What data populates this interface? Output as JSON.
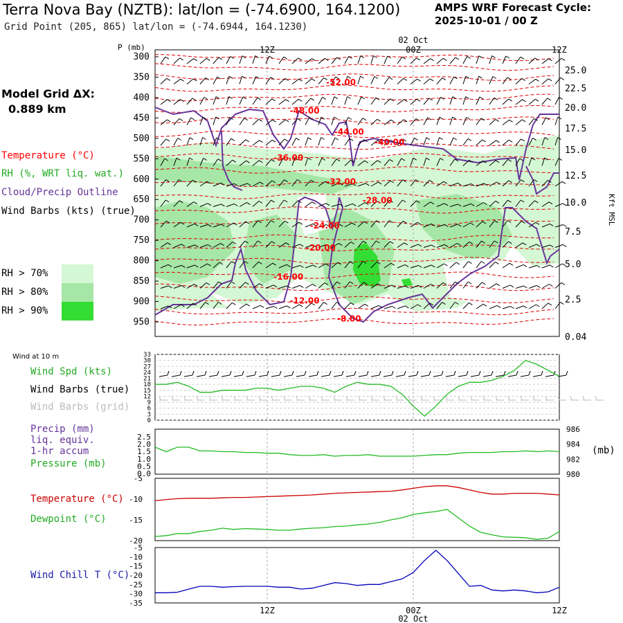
{
  "header": {
    "title": "Terra Nova Bay (NZTB):  lat/lon = (-74.6900, 164.1200)",
    "subtitle": "Grid Point (205, 865) lat/lon = (-74.6944, 164.1230)",
    "cycle_line1": "AMPS WRF Forecast Cycle:",
    "cycle_line2": "2025-10-01 / 00  Z"
  },
  "model_grid": {
    "label": "Model Grid ΔX:",
    "value": "0.889 km"
  },
  "legend": {
    "temperature": "Temperature (°C)",
    "rh": "RH (%, WRT liq. wat.)",
    "cloud": "Cloud/Precip Outline",
    "wind": "Wind Barbs (kts) (true)",
    "rh70": "RH > 70%",
    "rh80": "RH > 80%",
    "rh90": "RH > 90%",
    "wind10m": "Wind at 10 m",
    "wind_spd": "Wind Spd (kts)",
    "barbs_true": "Wind Barbs (true)",
    "barbs_grid": "Wind Barbs (grid)",
    "precip1": "Precip (mm)",
    "precip2": "liq. equiv.",
    "precip3": "1-hr accum",
    "pressure": "Pressure (mb)",
    "mb": "(mb)",
    "temp": "Temperature (°C)",
    "dewpoint": "Dewpoint (°C)",
    "windchill": "Wind Chill T (°C)"
  },
  "colors": {
    "temperature": "#ff0000",
    "contour": "#dd0000",
    "rh_green": "#22bb22",
    "cloud": "#663399",
    "wind": "#000000",
    "barb_grid": "#bbbbbb",
    "dewpoint": "#22bb22",
    "windchill": "#0000bb",
    "rh70": "#d4f7d4",
    "rh80": "#a6e6a6",
    "rh90": "#33dd33"
  },
  "chart_data": [
    {
      "type": "cross-section",
      "title": "Temperature / RH / Cloud / Wind time-height",
      "y_label": "P (mb)",
      "y_right_label": "Kft MSL",
      "p_ticks": [
        "300",
        "350",
        "400",
        "450",
        "500",
        "550",
        "600",
        "650",
        "700",
        "750",
        "800",
        "850",
        "900",
        "950"
      ],
      "kft_ticks": [
        "25.0",
        "22.5",
        "20.0",
        "17.5",
        "15.0",
        "12.5",
        "10.0",
        "7.5",
        "5.0",
        "2.5",
        "0.04"
      ],
      "time_ticks": [
        "12Z",
        "00Z",
        "12Z"
      ],
      "date_label": "02 Oct",
      "temperature_labels": [
        {
          "text": "-52.00",
          "p": 363,
          "t": 0.46
        },
        {
          "text": "-48.00",
          "p": 432,
          "t": 0.37
        },
        {
          "text": "-44.00",
          "p": 484,
          "t": 0.48
        },
        {
          "text": "-40.00",
          "p": 510,
          "t": 0.58
        },
        {
          "text": "-36.00",
          "p": 548,
          "t": 0.33
        },
        {
          "text": "-32.00",
          "p": 606,
          "t": 0.46
        },
        {
          "text": "-28.00",
          "p": 652,
          "t": 0.55
        },
        {
          "text": "-24.00",
          "p": 714,
          "t": 0.42
        },
        {
          "text": "-20.00",
          "p": 768,
          "t": 0.41
        },
        {
          "text": "-16.00",
          "p": 840,
          "t": 0.33
        },
        {
          "text": "-12.00",
          "p": 898,
          "t": 0.37
        },
        {
          "text": "-8.00",
          "p": 942,
          "t": 0.48
        }
      ],
      "temperature_contours_p": [
        302,
        325,
        350,
        378,
        400,
        428,
        455,
        490,
        520,
        545,
        578,
        610,
        640,
        675,
        705,
        745,
        770,
        800,
        835,
        865,
        895,
        925,
        950
      ]
    },
    {
      "type": "line",
      "title": "Wind at 10 m",
      "ylabel": "Wind Spd (kts)",
      "yticks": [
        "33",
        "30",
        "27",
        "24",
        "21",
        "18",
        "15",
        "12",
        "9",
        "6",
        "3",
        "0"
      ],
      "ylim": [
        0,
        33
      ],
      "x": [
        0,
        1,
        2,
        3,
        4,
        5,
        6,
        7,
        8,
        9,
        10,
        11,
        12,
        13,
        14,
        15,
        16,
        17,
        18,
        19,
        20,
        21,
        22,
        23,
        24,
        25,
        26,
        27,
        28,
        29,
        30,
        31,
        32,
        33,
        34,
        35,
        36
      ],
      "values": [
        18,
        18,
        19,
        17,
        14,
        14,
        15,
        15,
        15,
        16,
        16,
        15,
        16,
        17,
        17,
        16,
        14,
        17,
        19,
        18,
        18,
        17,
        13,
        7,
        2,
        7,
        13,
        17,
        19,
        19,
        20,
        22,
        25,
        30,
        28,
        25,
        22
      ]
    },
    {
      "type": "line",
      "title": "Precip / Pressure",
      "ylabel": "Precip (mm) liq. equiv. 1-hr accum; Pressure (mb)",
      "yticks_left": [
        "2.5",
        "2.0",
        "1.5",
        "1.0",
        "0.5",
        "0.0"
      ],
      "yticks_right": [
        "986",
        "984",
        "982",
        "980"
      ],
      "ylim": [
        980,
        986
      ],
      "series": [
        {
          "name": "Pressure (mb)",
          "values": [
            983.6,
            983.0,
            983.6,
            983.6,
            983.1,
            983.1,
            983.0,
            983.0,
            982.9,
            982.9,
            982.8,
            982.8,
            982.6,
            982.5,
            982.5,
            982.6,
            982.4,
            982.5,
            982.5,
            982.6,
            982.4,
            982.4,
            982.4,
            982.4,
            982.5,
            982.6,
            982.6,
            982.8,
            982.9,
            982.9,
            982.9,
            983.0,
            983.0,
            983.1,
            983.0,
            983.1,
            983.0
          ]
        }
      ]
    },
    {
      "type": "line",
      "title": "Temperature / Dewpoint",
      "yticks": [
        "-5",
        "-10",
        "-15",
        "-20"
      ],
      "ylim": [
        -20,
        -5
      ],
      "series": [
        {
          "name": "Temperature (°C)",
          "values": [
            -10.4,
            -10.1,
            -9.9,
            -9.8,
            -9.8,
            -9.8,
            -9.7,
            -9.6,
            -9.6,
            -9.5,
            -9.4,
            -9.3,
            -9.2,
            -9.1,
            -9.0,
            -8.8,
            -8.6,
            -8.5,
            -8.4,
            -8.3,
            -8.2,
            -8.1,
            -7.8,
            -7.4,
            -7.0,
            -6.8,
            -6.8,
            -7.2,
            -7.8,
            -8.4,
            -8.8,
            -8.8,
            -8.6,
            -8.6,
            -8.6,
            -8.8,
            -9.0
          ]
        },
        {
          "name": "Dewpoint (°C)",
          "values": [
            -19.0,
            -18.8,
            -18.3,
            -18.3,
            -17.8,
            -17.5,
            -17.0,
            -17.3,
            -17.1,
            -17.2,
            -17.3,
            -17.5,
            -17.5,
            -17.2,
            -17.0,
            -16.9,
            -16.6,
            -16.5,
            -16.2,
            -16.0,
            -15.6,
            -15.0,
            -14.5,
            -13.7,
            -13.3,
            -13.0,
            -12.5,
            -14.5,
            -16.5,
            -18.0,
            -18.6,
            -19.1,
            -19.2,
            -19.3,
            -19.7,
            -19.4,
            -17.8
          ]
        }
      ]
    },
    {
      "type": "line",
      "title": "Wind Chill",
      "ylabel": "Wind Chill T (°C)",
      "yticks": [
        "-5",
        "-10",
        "-15",
        "-20",
        "-25",
        "-30",
        "-35"
      ],
      "ylim": [
        -35,
        -5
      ],
      "values": [
        -29.5,
        -29.5,
        -29.2,
        -27.5,
        -26.0,
        -26.0,
        -26.5,
        -26.2,
        -26.0,
        -26.0,
        -26.0,
        -26.5,
        -26.5,
        -27.5,
        -27.0,
        -25.5,
        -24.0,
        -24.5,
        -25.5,
        -25.0,
        -25.0,
        -23.5,
        -22.0,
        -18.5,
        -12.0,
        -6.5,
        -12.0,
        -19.0,
        -26.0,
        -25.5,
        -28.0,
        -28.5,
        -28.0,
        -28.5,
        -29.5,
        -29.0,
        -26.5
      ]
    }
  ]
}
